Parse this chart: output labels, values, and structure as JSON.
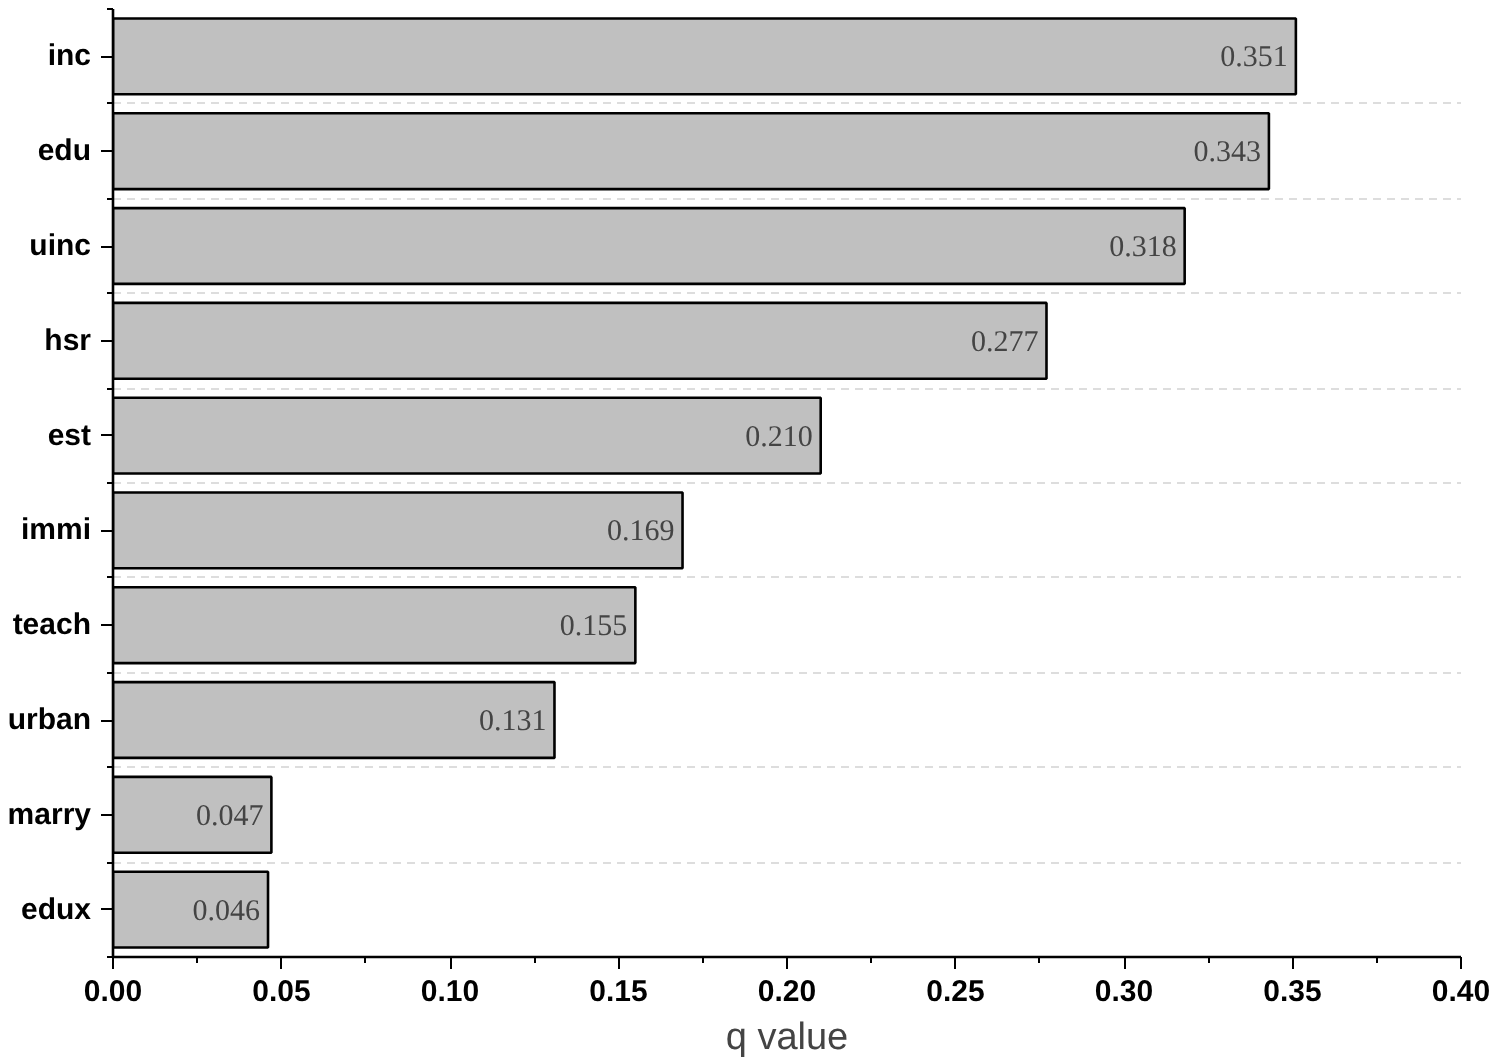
{
  "chart_data": {
    "type": "bar",
    "orientation": "horizontal",
    "xlabel": "q value",
    "categories": [
      "inc",
      "edu",
      "uinc",
      "hsr",
      "est",
      "immi",
      "teach",
      "urban",
      "marry",
      "edux"
    ],
    "values": [
      0.351,
      0.343,
      0.318,
      0.277,
      0.21,
      0.169,
      0.155,
      0.131,
      0.047,
      0.046
    ],
    "value_labels": [
      "0.351",
      "0.343",
      "0.318",
      "0.277",
      "0.210",
      "0.169",
      "0.155",
      "0.131",
      "0.047",
      "0.046"
    ],
    "color": "#c0c0c0",
    "xlim": [
      0,
      0.4
    ],
    "xticks": [
      {
        "value": 0,
        "label": "0.00"
      },
      {
        "value": 0.05,
        "label": "0.05"
      },
      {
        "value": 0.1,
        "label": "0.10"
      },
      {
        "value": 0.15,
        "label": "0.15"
      },
      {
        "value": 0.2,
        "label": "0.20"
      },
      {
        "value": 0.25,
        "label": "0.25"
      },
      {
        "value": 0.3,
        "label": "0.30"
      },
      {
        "value": 0.35,
        "label": "0.35"
      },
      {
        "value": 0.4,
        "label": "0.40"
      }
    ],
    "grid": "y"
  }
}
